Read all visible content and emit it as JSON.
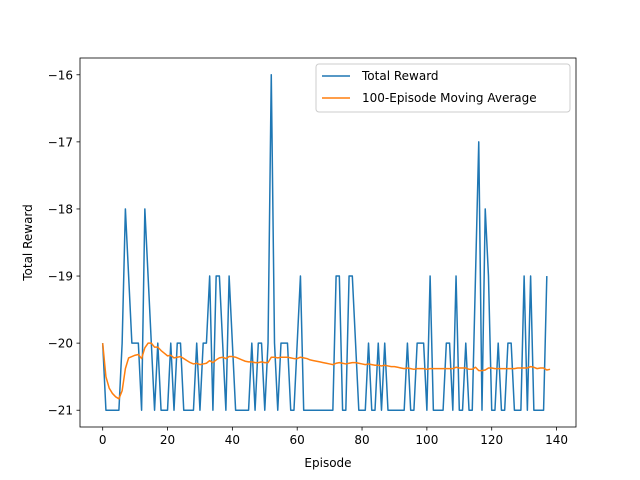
{
  "chart_data": {
    "type": "line",
    "xlabel": "Episode",
    "ylabel": "Total Reward",
    "xlim": [
      -7,
      146
    ],
    "ylim": [
      -21.25,
      -15.75
    ],
    "xticks": [
      0,
      20,
      40,
      60,
      80,
      100,
      120,
      140
    ],
    "yticks": [
      -21,
      -20,
      -19,
      -18,
      -17,
      -16
    ],
    "ytick_labels": [
      "−21",
      "−20",
      "−19",
      "−18",
      "−17",
      "−16"
    ],
    "legend": {
      "placement": "upper-right"
    },
    "series": [
      {
        "name": "Total Reward",
        "color": "#1f77b4",
        "values": [
          -20,
          -21,
          -21,
          -21,
          -21,
          -21,
          -20,
          -18,
          -19,
          -20,
          -20,
          -20,
          -21,
          -18,
          -19,
          -20,
          -21,
          -20,
          -21,
          -21,
          -21,
          -20,
          -21,
          -20,
          -20,
          -21,
          -21,
          -21,
          -21,
          -20,
          -21,
          -20,
          -20,
          -19,
          -21,
          -19,
          -19,
          -20,
          -21,
          -19,
          -20,
          -21,
          -21,
          -21,
          -21,
          -21,
          -20,
          -21,
          -20,
          -20,
          -21,
          -20,
          -16,
          -20,
          -21,
          -20,
          -20,
          -20,
          -21,
          -21,
          -20,
          -19,
          -21,
          -21,
          -21,
          -21,
          -21,
          -21,
          -21,
          -21,
          -21,
          -21,
          -19,
          -19,
          -21,
          -21,
          -19,
          -19,
          -20,
          -21,
          -21,
          -21,
          -20,
          -21,
          -21,
          -20,
          -21,
          -20,
          -21,
          -21,
          -21,
          -21,
          -21,
          -21,
          -20,
          -21,
          -21,
          -20,
          -20,
          -20,
          -21,
          -19,
          -21,
          -21,
          -21,
          -21,
          -20,
          -20,
          -21,
          -19,
          -21,
          -21,
          -20,
          -21,
          -21,
          -19,
          -17,
          -21,
          -18,
          -19,
          -21,
          -21,
          -20,
          -21,
          -21,
          -20,
          -20,
          -21,
          -21,
          -21,
          -19,
          -21,
          -19,
          -21,
          -21,
          -21,
          -21,
          -19
        ]
      },
      {
        "name": "100-Episode Moving Average",
        "color": "#ff7f0e",
        "values": [
          -20.0,
          -20.5,
          -20.67,
          -20.75,
          -20.8,
          -20.83,
          -20.71,
          -20.38,
          -20.22,
          -20.2,
          -20.18,
          -20.17,
          -20.23,
          -20.07,
          -20.0,
          -20.0,
          -20.06,
          -20.06,
          -20.11,
          -20.15,
          -20.19,
          -20.18,
          -20.22,
          -20.21,
          -20.2,
          -20.23,
          -20.26,
          -20.29,
          -20.31,
          -20.3,
          -20.32,
          -20.31,
          -20.3,
          -20.26,
          -20.29,
          -20.25,
          -20.22,
          -20.21,
          -20.23,
          -20.2,
          -20.2,
          -20.21,
          -20.23,
          -20.25,
          -20.27,
          -20.28,
          -20.28,
          -20.29,
          -20.29,
          -20.28,
          -20.29,
          -20.29,
          -20.21,
          -20.21,
          -20.22,
          -20.21,
          -20.21,
          -20.21,
          -20.22,
          -20.23,
          -20.23,
          -20.21,
          -20.22,
          -20.23,
          -20.25,
          -20.26,
          -20.27,
          -20.28,
          -20.29,
          -20.3,
          -20.31,
          -20.32,
          -20.3,
          -20.29,
          -20.3,
          -20.31,
          -20.3,
          -20.29,
          -20.29,
          -20.3,
          -20.31,
          -20.32,
          -20.31,
          -20.32,
          -20.33,
          -20.33,
          -20.34,
          -20.33,
          -20.34,
          -20.35,
          -20.35,
          -20.36,
          -20.37,
          -20.38,
          -20.37,
          -20.38,
          -20.39,
          -20.38,
          -20.38,
          -20.38,
          -20.39,
          -20.38,
          -20.38,
          -20.38,
          -20.38,
          -20.38,
          -20.38,
          -20.38,
          -20.38,
          -20.36,
          -20.37,
          -20.37,
          -20.37,
          -20.39,
          -20.39,
          -20.36,
          -20.41,
          -20.41,
          -20.4,
          -20.37,
          -20.37,
          -20.38,
          -20.38,
          -20.38,
          -20.38,
          -20.38,
          -20.38,
          -20.38,
          -20.37,
          -20.37,
          -20.37,
          -20.37,
          -20.35,
          -20.36,
          -20.38,
          -20.37,
          -20.37,
          -20.4,
          -20.39
        ]
      }
    ]
  }
}
